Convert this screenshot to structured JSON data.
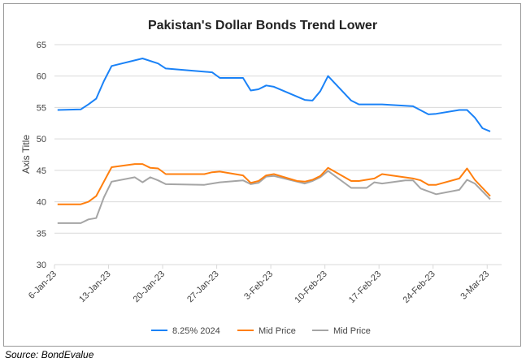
{
  "chart_data": {
    "type": "line",
    "title": "Pakistan's Dollar Bonds Trend Lower",
    "xlabel": "",
    "ylabel": "Axis Title",
    "ylim": [
      30,
      65
    ],
    "yticks": [
      "30",
      "35",
      "40",
      "45",
      "50",
      "55",
      "60",
      "65"
    ],
    "ytick_values": [
      30,
      35,
      40,
      45,
      50,
      55,
      60,
      65
    ],
    "x_unit": "days since 6-Jan-23",
    "xlim": [
      0,
      57
    ],
    "xticks": [
      "6-Jan-23",
      "13-Jan-23",
      "20-Jan-23",
      "27-Jan-23",
      "3-Feb-23",
      "10-Feb-23",
      "17-Feb-23",
      "24-Feb-23",
      "3-Mar-23"
    ],
    "xtick_values": [
      0,
      7,
      14,
      21,
      28,
      35,
      42,
      49,
      56
    ],
    "grid": true,
    "legend_position": "bottom",
    "series": [
      {
        "name": "8.25% 2024",
        "color": "#1a82f7",
        "x": [
          0,
          3,
          4,
          5,
          6,
          7,
          11,
          13,
          14,
          20,
          21,
          24,
          25,
          26,
          27,
          28,
          32,
          33,
          34,
          35,
          38,
          39,
          42,
          46,
          48,
          49,
          52,
          53,
          54,
          55,
          56
        ],
        "y": [
          54.6,
          54.7,
          55.5,
          56.4,
          59.2,
          61.6,
          62.8,
          62.0,
          61.2,
          60.6,
          59.7,
          59.7,
          57.7,
          57.9,
          58.5,
          58.3,
          56.2,
          56.1,
          57.6,
          60.0,
          56.1,
          55.5,
          55.5,
          55.2,
          53.9,
          54.0,
          54.6,
          54.6,
          53.4,
          51.7,
          51.2
        ]
      },
      {
        "name": "Mid Price",
        "color": "#ff7f0e",
        "x": [
          0,
          3,
          4,
          5,
          7,
          10,
          11,
          12,
          13,
          14,
          19,
          20,
          21,
          24,
          25,
          26,
          27,
          28,
          31,
          32,
          33,
          34,
          35,
          38,
          39,
          41,
          42,
          46,
          47,
          48,
          49,
          52,
          53,
          54,
          56
        ],
        "y": [
          39.6,
          39.6,
          40.0,
          40.9,
          45.5,
          46.0,
          46.0,
          45.4,
          45.3,
          44.4,
          44.4,
          44.7,
          44.8,
          44.2,
          43.0,
          43.3,
          44.2,
          44.4,
          43.3,
          43.2,
          43.5,
          44.1,
          45.4,
          43.3,
          43.3,
          43.7,
          44.4,
          43.7,
          43.4,
          42.7,
          42.7,
          43.7,
          45.3,
          43.5,
          40.9
        ]
      },
      {
        "name": "Mid Price",
        "color": "#a5a5a5",
        "x": [
          0,
          3,
          4,
          5,
          6,
          7,
          10,
          11,
          12,
          13,
          14,
          19,
          21,
          24,
          25,
          26,
          27,
          28,
          32,
          33,
          34,
          35,
          38,
          40,
          41,
          42,
          45,
          46,
          47,
          49,
          52,
          53,
          54,
          56
        ],
        "y": [
          36.6,
          36.6,
          37.2,
          37.4,
          40.7,
          43.2,
          43.9,
          43.1,
          43.9,
          43.4,
          42.8,
          42.7,
          43.1,
          43.4,
          42.8,
          43.0,
          44.0,
          44.1,
          42.9,
          43.3,
          43.9,
          44.9,
          42.2,
          42.2,
          43.1,
          42.9,
          43.4,
          43.4,
          42.1,
          41.2,
          41.9,
          43.5,
          42.9,
          40.4
        ]
      }
    ]
  },
  "source": "Source: BondEvalue"
}
